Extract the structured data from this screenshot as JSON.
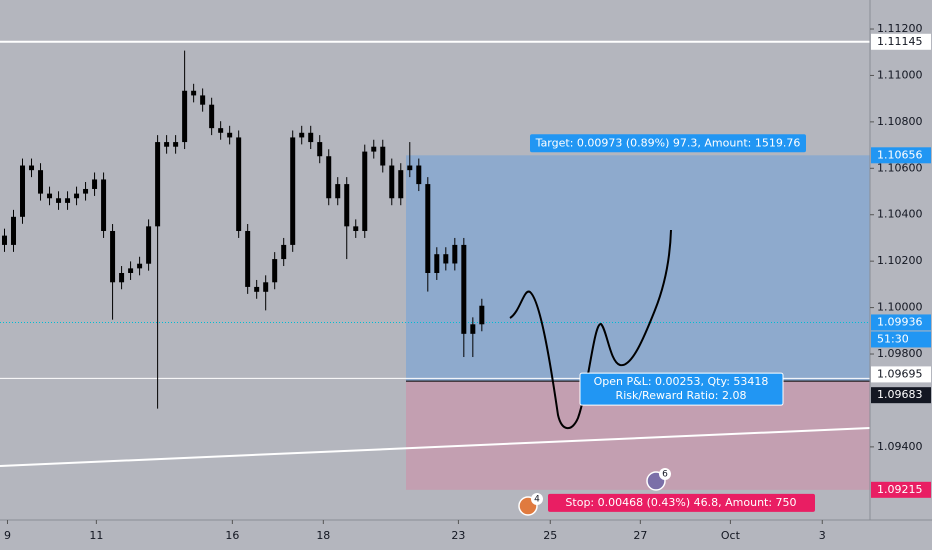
{
  "chart_data": {
    "type": "candlestick",
    "x": [
      0,
      1,
      2,
      3,
      4,
      5,
      6,
      7,
      8,
      9,
      10,
      11,
      12,
      13,
      14,
      15,
      16,
      17,
      18,
      19,
      20,
      21,
      22,
      23,
      24,
      25,
      26,
      27,
      28,
      29,
      30,
      31,
      32,
      33,
      34,
      35,
      36,
      37,
      38,
      39,
      40,
      41,
      42,
      43,
      44,
      45,
      46,
      47,
      48,
      49,
      50,
      51,
      52,
      53
    ],
    "open": [
      1.1031,
      1.1027,
      1.10391,
      1.10612,
      1.10592,
      1.10491,
      1.10471,
      1.10451,
      1.10471,
      1.10491,
      1.10511,
      1.10552,
      1.1033,
      1.10109,
      1.10149,
      1.10169,
      1.10189,
      1.1035,
      1.10713,
      1.10693,
      1.10713,
      1.10934,
      1.10914,
      1.10874,
      1.10773,
      1.10753,
      1.10733,
      1.1033,
      1.10089,
      1.10068,
      1.10109,
      1.10209,
      1.1027,
      1.10733,
      1.10753,
      1.10713,
      1.10652,
      1.10471,
      1.10532,
      1.1035,
      1.1033,
      1.10672,
      1.10693,
      1.10612,
      1.10471,
      1.10592,
      1.10612,
      1.10532,
      1.10149,
      1.1023,
      1.1019,
      1.1027,
      1.09887,
      1.09928
    ],
    "high": [
      1.1034,
      1.10421,
      1.10642,
      1.10642,
      1.10622,
      1.10521,
      1.10501,
      1.10501,
      1.10521,
      1.10541,
      1.10582,
      1.10582,
      1.1036,
      1.10179,
      1.10199,
      1.10219,
      1.1038,
      1.10743,
      1.10743,
      1.10743,
      1.11107,
      1.10964,
      1.10944,
      1.10904,
      1.10803,
      1.10783,
      1.10763,
      1.1036,
      1.10119,
      1.10139,
      1.10239,
      1.103,
      1.10763,
      1.10783,
      1.10783,
      1.10743,
      1.10682,
      1.10562,
      1.10562,
      1.1038,
      1.10702,
      1.10723,
      1.10723,
      1.10642,
      1.10622,
      1.10713,
      1.10642,
      1.10562,
      1.1026,
      1.1026,
      1.103,
      1.103,
      1.09958,
      1.10038
    ],
    "low": [
      1.1024,
      1.1024,
      1.10361,
      1.10562,
      1.10461,
      1.10441,
      1.10421,
      1.10421,
      1.10441,
      1.10461,
      1.10481,
      1.103,
      1.09948,
      1.10079,
      1.10119,
      1.10139,
      1.10159,
      1.09565,
      1.10663,
      1.10663,
      1.10683,
      1.10884,
      1.10844,
      1.10743,
      1.10723,
      1.10703,
      1.103,
      1.10059,
      1.10038,
      1.09988,
      1.10079,
      1.10179,
      1.1024,
      1.10703,
      1.10683,
      1.10622,
      1.10441,
      1.10441,
      1.10209,
      1.103,
      1.103,
      1.10642,
      1.10582,
      1.10441,
      1.10441,
      1.10562,
      1.10502,
      1.10069,
      1.10119,
      1.1016,
      1.1016,
      1.09787,
      1.09787,
      1.09898
    ],
    "close": [
      1.1027,
      1.10391,
      1.10612,
      1.10592,
      1.10491,
      1.10471,
      1.10451,
      1.10471,
      1.10491,
      1.10511,
      1.10552,
      1.1033,
      1.10109,
      1.10149,
      1.10169,
      1.10189,
      1.1035,
      1.10713,
      1.10693,
      1.10713,
      1.10934,
      1.10914,
      1.10874,
      1.10773,
      1.10753,
      1.10733,
      1.1033,
      1.10089,
      1.10068,
      1.10109,
      1.10209,
      1.1027,
      1.10733,
      1.10753,
      1.10713,
      1.10652,
      1.10471,
      1.10532,
      1.1035,
      1.1033,
      1.10672,
      1.10693,
      1.10612,
      1.10471,
      1.10592,
      1.10612,
      1.10532,
      1.10149,
      1.1023,
      1.1019,
      1.1027,
      1.09887,
      1.09928,
      1.10008
    ],
    "color": "#000000",
    "xlim": [
      -0.5,
      96.1
    ],
    "xticks": [
      {
        "value": 0.33,
        "label": "9"
      },
      {
        "value": 10.2,
        "label": "11"
      },
      {
        "value": 25.3,
        "label": "16"
      },
      {
        "value": 35.4,
        "label": "18"
      },
      {
        "value": 50.4,
        "label": "23"
      },
      {
        "value": 60.6,
        "label": "25"
      },
      {
        "value": 70.6,
        "label": "27"
      },
      {
        "value": 80.6,
        "label": "Oct"
      },
      {
        "value": 90.8,
        "label": "3"
      }
    ],
    "ylim": [
      1.09085,
      1.11325
    ],
    "yticks": [
      {
        "value": 1.112,
        "label": "1.11200"
      },
      {
        "value": 1.11,
        "label": "1.11000"
      },
      {
        "value": 1.108,
        "label": "1.10800"
      },
      {
        "value": 1.106,
        "label": "1.10600"
      },
      {
        "value": 1.104,
        "label": "1.10400"
      },
      {
        "value": 1.102,
        "label": "1.10200"
      },
      {
        "value": 1.1,
        "label": "1.10000"
      },
      {
        "value": 1.098,
        "label": "1.09800"
      },
      {
        "value": 1.094,
        "label": "1.09400"
      }
    ],
    "hlines": [
      {
        "value": 1.11145,
        "color": "#ffffff"
      },
      {
        "value": 1.09695,
        "color": "#ffffff"
      }
    ],
    "price_line": {
      "value": 1.09936,
      "color": "#00bcd4",
      "countdown": "51:30"
    },
    "position": {
      "target": 1.10656,
      "entry": 1.09683,
      "stop": 1.09215,
      "target_label": "Target: 0.00973 (0.89%) 97.3, Amount: 1519.76",
      "pnl_label": "Open P&L: 0.00253, Qty: 53418",
      "rr_label": "Risk/Reward Ratio: 2.08",
      "stop_label": "Stop: 0.00468 (0.43%) 46.8, Amount: 750"
    },
    "events": [
      4,
      6
    ]
  }
}
